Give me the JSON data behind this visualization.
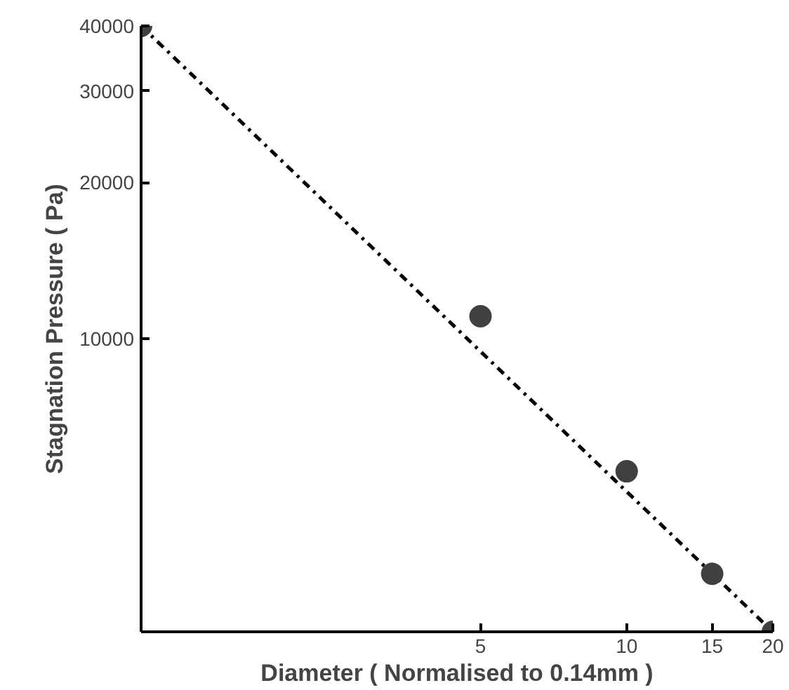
{
  "chart_data": {
    "type": "scatter",
    "xlabel": "Diameter ( Normalised to 0.14mm )",
    "ylabel": "Stagnation Pressure ( Pa)",
    "log": "xy",
    "grid": false,
    "xlim": [
      1,
      20
    ],
    "ylim": [
      2730,
      40000
    ],
    "xticks": [
      5,
      10,
      15,
      20
    ],
    "yticks": [
      10000,
      20000,
      30000,
      40000
    ],
    "series": [
      {
        "marker": "circle",
        "color": "#404040",
        "x": [
          1,
          5,
          10,
          15,
          20
        ],
        "values": [
          40000,
          11050,
          5560,
          3530,
          2730
        ]
      },
      {
        "type": "line",
        "color": "#000000",
        "line_style": "dashdot",
        "marker": "none",
        "x": [
          1,
          20
        ],
        "values": [
          40000,
          2730
        ]
      }
    ]
  }
}
